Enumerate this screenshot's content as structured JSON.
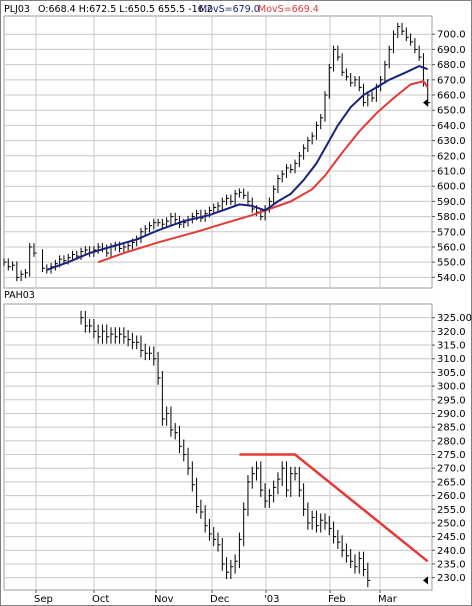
{
  "chart_data": [
    {
      "type": "ohlc",
      "title": "PLJ03",
      "header": {
        "symbol": "PLJ03",
        "quote": "O:668.4 H:672.5 L:650.5 655.5 -16.2",
        "ma1_label": "MovS=679.0",
        "ma2_label": "MovS=669.4",
        "ma1_color": "#1a237e",
        "ma2_color": "#e53935"
      },
      "ylim": [
        533,
        712
      ],
      "y_ticks": [
        "540.0",
        "550.0",
        "560.0",
        "570.0",
        "580.0",
        "590.0",
        "600.0",
        "610.0",
        "620.0",
        "630.0",
        "640.0",
        "650.0",
        "660.0",
        "670.0",
        "680.0",
        "690.0",
        "700.0"
      ],
      "x_labels": [
        "Sep",
        "Oct",
        "Nov",
        "Dec",
        "'03",
        "Feb",
        "Mar"
      ],
      "grid": true,
      "bar_color": "#000000",
      "series": [
        {
          "kind": "close",
          "points": [
            [
              0,
              550
            ],
            [
              2,
              547
            ],
            [
              4,
              548
            ],
            [
              6,
              540
            ],
            [
              8,
              542
            ],
            [
              10,
              543
            ],
            [
              12,
              560
            ],
            [
              14,
              556
            ],
            [
              18,
              546
            ],
            [
              20,
              545
            ],
            [
              22,
              547
            ],
            [
              24,
              549
            ],
            [
              26,
              552
            ],
            [
              28,
              551
            ],
            [
              30,
              553
            ],
            [
              32,
              555
            ],
            [
              34,
              554
            ],
            [
              36,
              557
            ],
            [
              38,
              558
            ],
            [
              40,
              556
            ],
            [
              42,
              558
            ],
            [
              44,
              560
            ],
            [
              46,
              559
            ],
            [
              48,
              556
            ],
            [
              50,
              560
            ],
            [
              52,
              561
            ],
            [
              54,
              559
            ],
            [
              56,
              560
            ],
            [
              58,
              561
            ],
            [
              60,
              563
            ],
            [
              62,
              565
            ],
            [
              64,
              570
            ],
            [
              66,
              572
            ],
            [
              68,
              574
            ],
            [
              70,
              576
            ],
            [
              72,
              576
            ],
            [
              74,
              575
            ],
            [
              76,
              577
            ],
            [
              78,
              580
            ],
            [
              80,
              578
            ],
            [
              82,
              575
            ],
            [
              84,
              576
            ],
            [
              86,
              578
            ],
            [
              88,
              580
            ],
            [
              90,
              582
            ],
            [
              92,
              579
            ],
            [
              94,
              582
            ],
            [
              96,
              584
            ],
            [
              98,
              586
            ],
            [
              100,
              587
            ],
            [
              102,
              590
            ],
            [
              104,
              592
            ],
            [
              106,
              590
            ],
            [
              108,
              595
            ],
            [
              110,
              596
            ],
            [
              112,
              594
            ],
            [
              114,
              590
            ],
            [
              116,
              585
            ],
            [
              118,
              583
            ],
            [
              120,
              580
            ],
            [
              122,
              585
            ],
            [
              124,
              590
            ],
            [
              126,
              598
            ],
            [
              128,
              605
            ],
            [
              130,
              608
            ],
            [
              132,
              612
            ],
            [
              134,
              611
            ],
            [
              136,
              615
            ],
            [
              138,
              620
            ],
            [
              140,
              625
            ],
            [
              142,
              630
            ],
            [
              144,
              633
            ],
            [
              146,
              640
            ],
            [
              148,
              645
            ],
            [
              150,
              660
            ],
            [
              152,
              678
            ],
            [
              154,
              690
            ],
            [
              156,
              685
            ],
            [
              158,
              675
            ],
            [
              160,
              672
            ],
            [
              162,
              668
            ],
            [
              164,
              670
            ],
            [
              166,
              665
            ],
            [
              168,
              655
            ],
            [
              170,
              660
            ],
            [
              172,
              658
            ],
            [
              174,
              665
            ],
            [
              176,
              670
            ],
            [
              178,
              680
            ],
            [
              180,
              690
            ],
            [
              182,
              700
            ],
            [
              184,
              705
            ],
            [
              186,
              702
            ],
            [
              188,
              698
            ],
            [
              190,
              695
            ],
            [
              192,
              690
            ],
            [
              194,
              685
            ],
            [
              196,
              668
            ],
            [
              198,
              655
            ]
          ]
        },
        {
          "kind": "ma_slow",
          "name": "MovS=669.4",
          "points": [
            [
              44,
              550
            ],
            [
              56,
              556
            ],
            [
              72,
              563
            ],
            [
              90,
              570
            ],
            [
              104,
              576
            ],
            [
              116,
              581
            ],
            [
              126,
              586
            ],
            [
              134,
              590
            ],
            [
              144,
              598
            ],
            [
              150,
              607
            ],
            [
              158,
              622
            ],
            [
              166,
              636
            ],
            [
              174,
              648
            ],
            [
              182,
              658
            ],
            [
              190,
              667
            ],
            [
              196,
              669
            ],
            [
              198,
              665
            ]
          ]
        },
        {
          "kind": "ma_fast",
          "name": "MovS=679.0",
          "points": [
            [
              20,
              545
            ],
            [
              30,
              550
            ],
            [
              40,
              556
            ],
            [
              52,
              561
            ],
            [
              62,
              565
            ],
            [
              72,
              571
            ],
            [
              84,
              577
            ],
            [
              96,
              581
            ],
            [
              104,
              585
            ],
            [
              110,
              588
            ],
            [
              116,
              587
            ],
            [
              122,
              584
            ],
            [
              128,
              590
            ],
            [
              134,
              595
            ],
            [
              140,
              604
            ],
            [
              146,
              615
            ],
            [
              150,
              625
            ],
            [
              156,
              640
            ],
            [
              162,
              652
            ],
            [
              168,
              660
            ],
            [
              174,
              665
            ],
            [
              180,
              670
            ],
            [
              188,
              675
            ],
            [
              194,
              679
            ],
            [
              198,
              677
            ]
          ]
        }
      ]
    },
    {
      "type": "ohlc",
      "title": "PAH03",
      "ylim": [
        225.5,
        330
      ],
      "y_ticks": [
        "230.0",
        "235.0",
        "240.0",
        "245.0",
        "250.0",
        "255.0",
        "260.0",
        "265.0",
        "270.0",
        "275.0",
        "280.0",
        "285.0",
        "290.0",
        "295.0",
        "300.0",
        "305.0",
        "310.0",
        "315.0",
        "320.0",
        "325.00"
      ],
      "x_labels": [
        "Sep",
        "Oct",
        "Nov",
        "Dec",
        "'03",
        "Feb",
        "Mar"
      ],
      "grid": true,
      "bar_color": "#000000",
      "trendline_color": "#e53935",
      "trendline": [
        [
          110,
          275
        ],
        [
          136,
          275
        ],
        [
          198,
          236
        ]
      ],
      "series": [
        {
          "kind": "close",
          "points": [
            [
              36,
              325
            ],
            [
              38,
              322
            ],
            [
              40,
              322
            ],
            [
              42,
              320
            ],
            [
              44,
              318
            ],
            [
              46,
              320
            ],
            [
              48,
              318
            ],
            [
              50,
              319
            ],
            [
              52,
              318
            ],
            [
              54,
              319
            ],
            [
              56,
              318
            ],
            [
              58,
              317
            ],
            [
              60,
              316
            ],
            [
              62,
              316
            ],
            [
              64,
              313
            ],
            [
              66,
              312
            ],
            [
              68,
              312
            ],
            [
              70,
              310
            ],
            [
              72,
              303
            ],
            [
              74,
              288
            ],
            [
              76,
              290
            ],
            [
              78,
              284
            ],
            [
              80,
              283
            ],
            [
              82,
              278
            ],
            [
              84,
              275
            ],
            [
              86,
              270
            ],
            [
              88,
              264
            ],
            [
              90,
              256
            ],
            [
              92,
              254
            ],
            [
              94,
              249
            ],
            [
              96,
              246
            ],
            [
              98,
              244
            ],
            [
              100,
              242
            ],
            [
              102,
              235
            ],
            [
              104,
              232
            ],
            [
              106,
              234
            ],
            [
              108,
              236
            ],
            [
              110,
              244
            ],
            [
              112,
              255
            ],
            [
              114,
              265
            ],
            [
              116,
              268
            ],
            [
              118,
              270
            ],
            [
              120,
              262
            ],
            [
              122,
              258
            ],
            [
              124,
              260
            ],
            [
              126,
              263
            ],
            [
              128,
              266
            ],
            [
              130,
              270
            ],
            [
              132,
              262
            ],
            [
              134,
              268
            ],
            [
              136,
              268
            ],
            [
              138,
              262
            ],
            [
              140,
              255
            ],
            [
              142,
              250
            ],
            [
              144,
              252
            ],
            [
              146,
              249
            ],
            [
              148,
              251
            ],
            [
              150,
              250
            ],
            [
              152,
              248
            ],
            [
              154,
              245
            ],
            [
              156,
              243
            ],
            [
              158,
              240
            ],
            [
              160,
              238
            ],
            [
              162,
              236
            ],
            [
              164,
              234
            ],
            [
              166,
              237
            ],
            [
              168,
              233
            ],
            [
              170,
              229
            ]
          ]
        }
      ]
    }
  ]
}
